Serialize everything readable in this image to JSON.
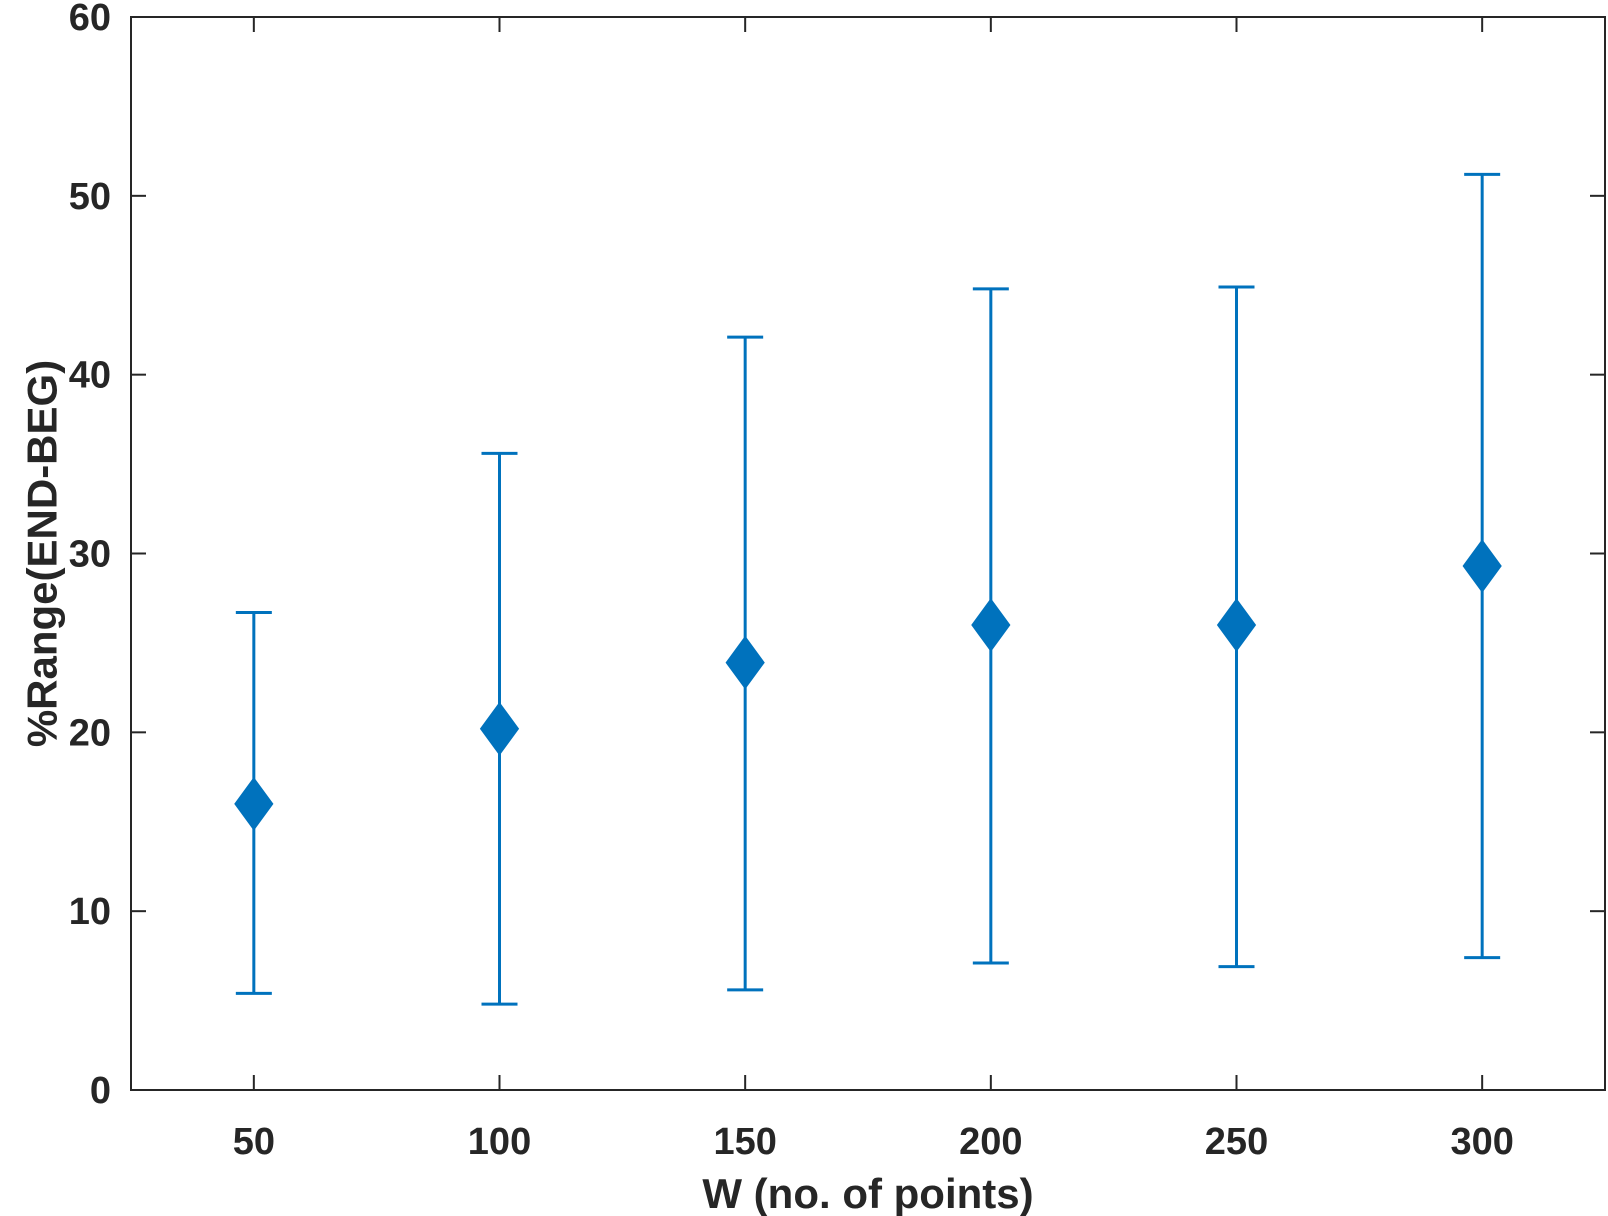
{
  "chart_data": {
    "type": "scatter",
    "title": "",
    "xlabel": "W (no. of points)",
    "ylabel": "%Range(END-BEG)",
    "x": [
      50,
      100,
      150,
      200,
      250,
      300
    ],
    "xlim": [
      25,
      325
    ],
    "ylim": [
      0,
      60
    ],
    "xticks": [
      50,
      100,
      150,
      200,
      250,
      300
    ],
    "yticks": [
      0,
      10,
      20,
      30,
      40,
      50,
      60
    ],
    "grid": false,
    "legend": "none",
    "series": [
      {
        "marker": "diamond",
        "color": "#0072BD",
        "values": [
          16.0,
          20.2,
          23.9,
          26.0,
          26.0,
          29.3
        ],
        "error_low": [
          5.4,
          4.8,
          5.6,
          7.1,
          6.9,
          7.4
        ],
        "error_high": [
          26.7,
          35.6,
          42.1,
          44.8,
          44.9,
          51.2
        ]
      }
    ],
    "colors": {
      "series": "#0072BD",
      "axis": "#262626"
    }
  }
}
